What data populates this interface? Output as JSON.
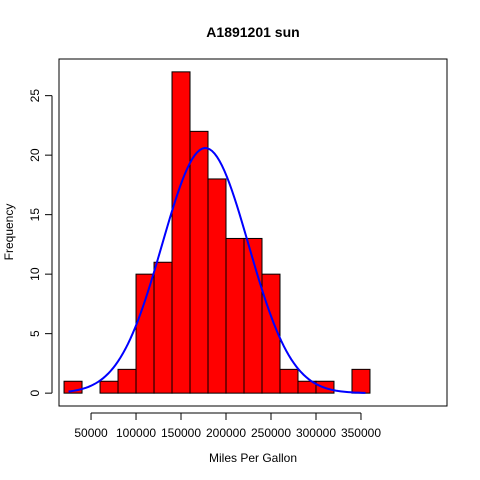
{
  "chart_data": {
    "type": "bar",
    "title": "A1891201 sun",
    "xlabel": "Miles Per Gallon",
    "ylabel": "Frequency",
    "bin_width": 20000,
    "bins": [
      {
        "start": 20000,
        "end": 40000,
        "count": 1
      },
      {
        "start": 40000,
        "end": 60000,
        "count": 0
      },
      {
        "start": 60000,
        "end": 80000,
        "count": 1
      },
      {
        "start": 80000,
        "end": 100000,
        "count": 2
      },
      {
        "start": 100000,
        "end": 120000,
        "count": 10
      },
      {
        "start": 120000,
        "end": 140000,
        "count": 11
      },
      {
        "start": 140000,
        "end": 160000,
        "count": 27
      },
      {
        "start": 160000,
        "end": 180000,
        "count": 22
      },
      {
        "start": 180000,
        "end": 200000,
        "count": 18
      },
      {
        "start": 200000,
        "end": 220000,
        "count": 13
      },
      {
        "start": 220000,
        "end": 240000,
        "count": 13
      },
      {
        "start": 240000,
        "end": 260000,
        "count": 10
      },
      {
        "start": 260000,
        "end": 280000,
        "count": 2
      },
      {
        "start": 280000,
        "end": 300000,
        "count": 1
      },
      {
        "start": 300000,
        "end": 320000,
        "count": 1
      },
      {
        "start": 320000,
        "end": 340000,
        "count": 0
      },
      {
        "start": 340000,
        "end": 360000,
        "count": 2
      }
    ],
    "xlim": [
      14400,
      445600
    ],
    "ylim": [
      -1.08,
      28.08
    ],
    "xticks": [
      50000,
      100000,
      150000,
      200000,
      250000,
      300000,
      350000
    ],
    "yticks": [
      0,
      5,
      10,
      15,
      20,
      25
    ],
    "normal_curve": {
      "mean": 177000,
      "sd": 48000,
      "x_range": [
        25000,
        355000
      ],
      "peak": 20.6
    },
    "grid": false,
    "legend": "none",
    "colors": {
      "bar_fill": "#FF0000",
      "bar_stroke": "#000000",
      "curve": "#0000FF"
    }
  }
}
